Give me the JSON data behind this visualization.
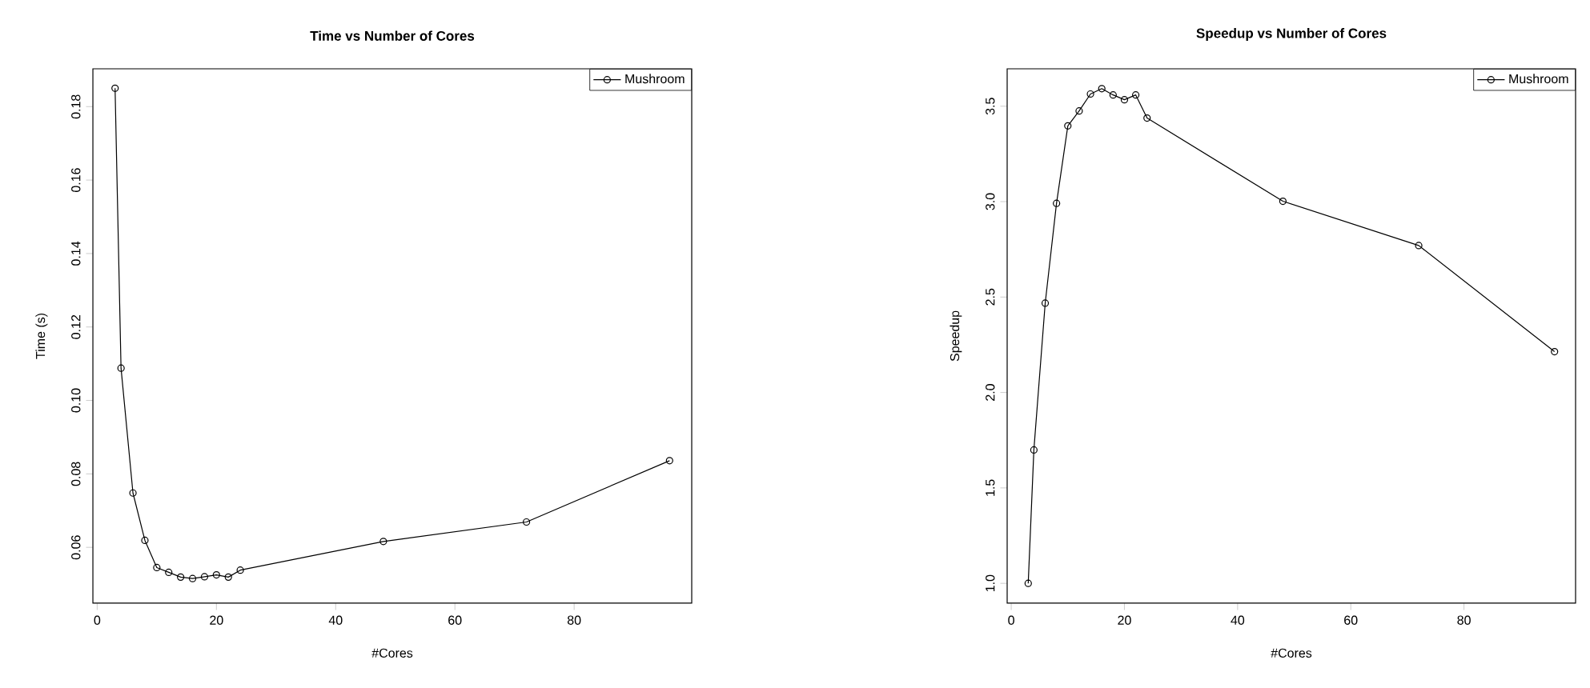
{
  "chart_data": [
    {
      "type": "line",
      "title": "Time vs Number of Cores",
      "xlabel": "#Cores",
      "ylabel": "Time (s)",
      "x": [
        3,
        4,
        6,
        8,
        10,
        12,
        14,
        16,
        18,
        20,
        22,
        24,
        48,
        72,
        96
      ],
      "series": [
        {
          "name": "Mushroom",
          "color": "#000000",
          "values": [
            0.185,
            0.1088,
            0.0748,
            0.0619,
            0.0545,
            0.0532,
            0.0519,
            0.0515,
            0.052,
            0.0525,
            0.0519,
            0.0538,
            0.0616,
            0.0669,
            0.0836
          ]
        }
      ],
      "xlim": [
        -0.72,
        99.72
      ],
      "ylim": [
        0.0448,
        0.1903
      ],
      "xticks": [
        0,
        20,
        40,
        60,
        80
      ],
      "yticks": [
        0.06,
        0.08,
        {
          "value": 0.1,
          "label": "0.10"
        },
        0.12,
        0.14,
        0.16,
        0.18
      ],
      "marker": "circle",
      "line_style": "solid",
      "legend": "top right",
      "grid": false
    },
    {
      "type": "line",
      "title": "Speedup vs Number of Cores",
      "xlabel": "#Cores",
      "ylabel": "Speedup",
      "x": [
        3,
        4,
        6,
        8,
        10,
        12,
        14,
        16,
        18,
        20,
        22,
        24,
        48,
        72,
        96
      ],
      "series": [
        {
          "name": "Mushroom",
          "color": "#000000",
          "values": [
            1.0,
            1.699,
            2.468,
            2.991,
            3.397,
            3.475,
            3.564,
            3.592,
            3.559,
            3.534,
            3.559,
            3.438,
            3.002,
            2.77,
            2.214
          ]
        }
      ],
      "xlim": [
        -0.72,
        99.72
      ],
      "ylim": [
        0.896,
        3.696
      ],
      "xticks": [
        0,
        20,
        40,
        60,
        80
      ],
      "yticks": [
        {
          "value": 1,
          "label": "1.0"
        },
        1.5,
        {
          "value": 2,
          "label": "2.0"
        },
        2.5,
        {
          "value": 3,
          "label": "3.0"
        },
        3.5
      ],
      "marker": "circle",
      "line_style": "solid",
      "legend": "top right",
      "grid": false
    }
  ]
}
